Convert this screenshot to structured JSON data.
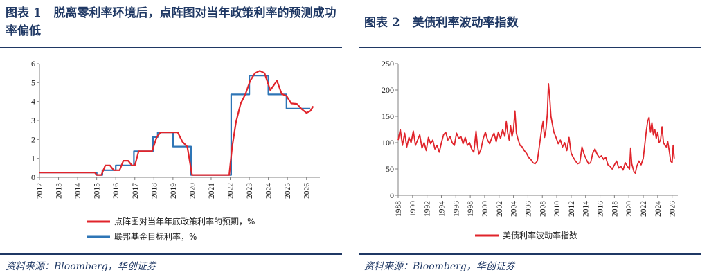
{
  "left": {
    "title": "图表 1   脱离零利率环境后，点阵图对当年政策利率的预测成功率偏低",
    "source": "资料来源：Bloomberg，华创证券",
    "chart_data": {
      "type": "line",
      "x_tick_labels": [
        "2012",
        "2013",
        "2014",
        "2015",
        "2016",
        "2017",
        "2018",
        "2019",
        "2020",
        "2021",
        "2022",
        "2023",
        "2024",
        "2025",
        "2026"
      ],
      "xlim": [
        2012,
        2026.7
      ],
      "ylim": [
        0,
        6
      ],
      "y_ticks": [
        0,
        1,
        2,
        3,
        4,
        5,
        6
      ],
      "legend_placement": "bottom",
      "series": [
        {
          "name": "点阵图对当年年底政策利率的预期，%",
          "color": "#e0242b",
          "points": [
            [
              2012.0,
              0.25
            ],
            [
              2014.9,
              0.25
            ],
            [
              2015.0,
              0.125
            ],
            [
              2015.25,
              0.125
            ],
            [
              2015.45,
              0.625
            ],
            [
              2015.7,
              0.625
            ],
            [
              2015.9,
              0.375
            ],
            [
              2016.2,
              0.375
            ],
            [
              2016.4,
              0.875
            ],
            [
              2016.65,
              0.875
            ],
            [
              2016.85,
              0.625
            ],
            [
              2017.0,
              0.625
            ],
            [
              2017.2,
              1.375
            ],
            [
              2017.9,
              1.375
            ],
            [
              2018.15,
              2.125
            ],
            [
              2018.35,
              2.375
            ],
            [
              2018.75,
              2.375
            ],
            [
              2019.25,
              2.375
            ],
            [
              2019.5,
              1.875
            ],
            [
              2019.75,
              1.625
            ],
            [
              2020.0,
              0.125
            ],
            [
              2021.95,
              0.125
            ],
            [
              2022.1,
              1.6
            ],
            [
              2022.3,
              2.9
            ],
            [
              2022.55,
              3.9
            ],
            [
              2022.8,
              4.4
            ],
            [
              2023.05,
              5.1
            ],
            [
              2023.3,
              5.5
            ],
            [
              2023.55,
              5.625
            ],
            [
              2023.8,
              5.5
            ],
            [
              2024.1,
              4.6
            ],
            [
              2024.45,
              5.1
            ],
            [
              2024.7,
              4.4
            ],
            [
              2024.95,
              4.3
            ],
            [
              2025.2,
              3.9
            ],
            [
              2025.5,
              3.875
            ],
            [
              2025.75,
              3.6
            ],
            [
              2026.0,
              3.4
            ],
            [
              2026.2,
              3.5
            ],
            [
              2026.35,
              3.75
            ]
          ]
        },
        {
          "name": "联邦基金目标利率，%",
          "color": "#2e75b6",
          "points": [
            [
              2012.0,
              0.25
            ],
            [
              2015.0,
              0.25
            ],
            [
              2015.0,
              0.125
            ],
            [
              2015.3,
              0.125
            ],
            [
              2015.3,
              0.375
            ],
            [
              2016.0,
              0.375
            ],
            [
              2016.0,
              0.625
            ],
            [
              2016.95,
              0.625
            ],
            [
              2016.95,
              1.375
            ],
            [
              2017.95,
              1.375
            ],
            [
              2017.95,
              2.125
            ],
            [
              2018.2,
              2.125
            ],
            [
              2018.2,
              2.375
            ],
            [
              2019.0,
              2.375
            ],
            [
              2019.0,
              1.625
            ],
            [
              2019.95,
              1.625
            ],
            [
              2019.95,
              0.125
            ],
            [
              2022.05,
              0.125
            ],
            [
              2022.05,
              4.375
            ],
            [
              2023.0,
              4.375
            ],
            [
              2023.0,
              5.375
            ],
            [
              2024.0,
              5.375
            ],
            [
              2024.0,
              4.375
            ],
            [
              2024.95,
              4.375
            ],
            [
              2024.95,
              3.625
            ],
            [
              2026.2,
              3.625
            ]
          ]
        }
      ]
    }
  },
  "right": {
    "title": "图表 2   美债利率波动率指数",
    "source": "资料来源：Bloomberg，华创证券",
    "chart_data": {
      "type": "line",
      "x_tick_labels": [
        "1988",
        "1990",
        "1992",
        "1994",
        "1996",
        "1998",
        "2000",
        "2002",
        "2004",
        "2006",
        "2008",
        "2010",
        "2012",
        "2014",
        "2016",
        "2018",
        "2020",
        "2022",
        "2024",
        "2026"
      ],
      "xlim": [
        1988,
        2026.8
      ],
      "ylim": [
        0,
        250
      ],
      "y_ticks": [
        0,
        50,
        100,
        150,
        200,
        250
      ],
      "legend_placement": "bottom",
      "series": [
        {
          "name": "美债利率波动率指数",
          "color": "#e0242b",
          "points": [
            [
              1988.0,
              105
            ],
            [
              1988.3,
              125
            ],
            [
              1988.6,
              95
            ],
            [
              1988.9,
              118
            ],
            [
              1989.2,
              92
            ],
            [
              1989.5,
              110
            ],
            [
              1989.8,
              100
            ],
            [
              1990.1,
              122
            ],
            [
              1990.4,
              95
            ],
            [
              1990.7,
              105
            ],
            [
              1991.0,
              115
            ],
            [
              1991.3,
              90
            ],
            [
              1991.6,
              100
            ],
            [
              1991.9,
              85
            ],
            [
              1992.2,
              110
            ],
            [
              1992.5,
              98
            ],
            [
              1992.8,
              105
            ],
            [
              1993.1,
              88
            ],
            [
              1993.4,
              95
            ],
            [
              1993.7,
              82
            ],
            [
              1994.0,
              100
            ],
            [
              1994.3,
              115
            ],
            [
              1994.6,
              120
            ],
            [
              1994.9,
              105
            ],
            [
              1995.2,
              112
            ],
            [
              1995.5,
              100
            ],
            [
              1995.8,
              95
            ],
            [
              1996.1,
              118
            ],
            [
              1996.4,
              108
            ],
            [
              1996.7,
              112
            ],
            [
              1997.0,
              98
            ],
            [
              1997.3,
              110
            ],
            [
              1997.6,
              95
            ],
            [
              1997.9,
              100
            ],
            [
              1998.2,
              88
            ],
            [
              1998.5,
              82
            ],
            [
              1998.8,
              122
            ],
            [
              1999.0,
              95
            ],
            [
              1999.2,
              78
            ],
            [
              1999.5,
              88
            ],
            [
              1999.8,
              108
            ],
            [
              2000.1,
              120
            ],
            [
              2000.4,
              105
            ],
            [
              2000.7,
              98
            ],
            [
              2001.0,
              110
            ],
            [
              2001.3,
              118
            ],
            [
              2001.6,
              102
            ],
            [
              2001.9,
              120
            ],
            [
              2002.2,
              108
            ],
            [
              2002.5,
              125
            ],
            [
              2002.8,
              112
            ],
            [
              2003.0,
              140
            ],
            [
              2003.2,
              118
            ],
            [
              2003.4,
              105
            ],
            [
              2003.6,
              132
            ],
            [
              2003.8,
              112
            ],
            [
              2004.0,
              125
            ],
            [
              2004.2,
              160
            ],
            [
              2004.4,
              118
            ],
            [
              2004.6,
              108
            ],
            [
              2004.9,
              95
            ],
            [
              2005.2,
              92
            ],
            [
              2005.5,
              85
            ],
            [
              2005.8,
              80
            ],
            [
              2006.1,
              72
            ],
            [
              2006.4,
              68
            ],
            [
              2006.7,
              62
            ],
            [
              2007.0,
              60
            ],
            [
              2007.3,
              65
            ],
            [
              2007.6,
              95
            ],
            [
              2007.9,
              125
            ],
            [
              2008.1,
              140
            ],
            [
              2008.3,
              110
            ],
            [
              2008.5,
              125
            ],
            [
              2008.7,
              155
            ],
            [
              2008.85,
              212
            ],
            [
              2009.0,
              190
            ],
            [
              2009.2,
              150
            ],
            [
              2009.4,
              135
            ],
            [
              2009.6,
              120
            ],
            [
              2009.9,
              110
            ],
            [
              2010.2,
              98
            ],
            [
              2010.5,
              105
            ],
            [
              2010.8,
              92
            ],
            [
              2011.1,
              100
            ],
            [
              2011.4,
              85
            ],
            [
              2011.7,
              110
            ],
            [
              2012.0,
              80
            ],
            [
              2012.3,
              72
            ],
            [
              2012.6,
              65
            ],
            [
              2012.9,
              60
            ],
            [
              2013.2,
              62
            ],
            [
              2013.5,
              92
            ],
            [
              2013.8,
              78
            ],
            [
              2014.1,
              68
            ],
            [
              2014.4,
              60
            ],
            [
              2014.7,
              62
            ],
            [
              2015.0,
              80
            ],
            [
              2015.3,
              88
            ],
            [
              2015.6,
              78
            ],
            [
              2015.9,
              72
            ],
            [
              2016.2,
              75
            ],
            [
              2016.5,
              68
            ],
            [
              2016.8,
              72
            ],
            [
              2017.1,
              58
            ],
            [
              2017.4,
              55
            ],
            [
              2017.7,
              50
            ],
            [
              2018.0,
              58
            ],
            [
              2018.3,
              65
            ],
            [
              2018.6,
              52
            ],
            [
              2018.9,
              55
            ],
            [
              2019.2,
              48
            ],
            [
              2019.5,
              62
            ],
            [
              2019.8,
              55
            ],
            [
              2020.1,
              50
            ],
            [
              2020.25,
              90
            ],
            [
              2020.4,
              60
            ],
            [
              2020.7,
              45
            ],
            [
              2020.9,
              42
            ],
            [
              2021.1,
              55
            ],
            [
              2021.4,
              65
            ],
            [
              2021.7,
              58
            ],
            [
              2022.0,
              70
            ],
            [
              2022.2,
              95
            ],
            [
              2022.4,
              120
            ],
            [
              2022.6,
              140
            ],
            [
              2022.8,
              148
            ],
            [
              2023.0,
              120
            ],
            [
              2023.2,
              138
            ],
            [
              2023.4,
              115
            ],
            [
              2023.6,
              125
            ],
            [
              2023.8,
              108
            ],
            [
              2024.0,
              120
            ],
            [
              2024.2,
              100
            ],
            [
              2024.4,
              105
            ],
            [
              2024.6,
              130
            ],
            [
              2024.8,
              100
            ],
            [
              2025.0,
              95
            ],
            [
              2025.2,
              92
            ],
            [
              2025.4,
              102
            ],
            [
              2025.6,
              85
            ],
            [
              2025.8,
              65
            ],
            [
              2026.0,
              62
            ],
            [
              2026.15,
              95
            ],
            [
              2026.3,
              70
            ]
          ]
        }
      ]
    }
  }
}
